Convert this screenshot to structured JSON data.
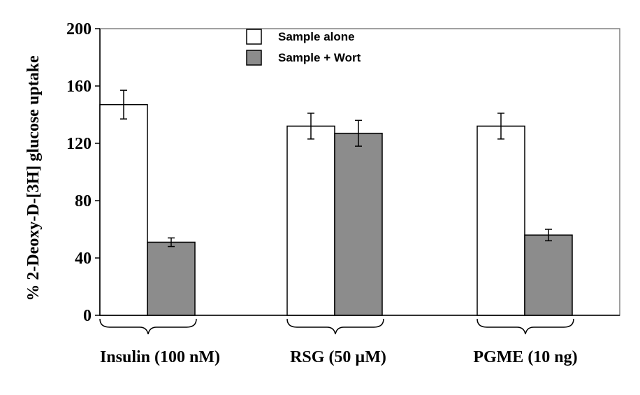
{
  "chart_data": {
    "type": "bar",
    "title": "",
    "ylabel": "% 2-Deoxy-D-[3H] glucose uptake",
    "xlabel": "",
    "ylim": [
      0,
      200
    ],
    "yticks": [
      "0",
      "40",
      "80",
      "120",
      "160",
      "200"
    ],
    "grid": false,
    "legend_position": "top-center",
    "categories": [
      "Insulin (100 nM)",
      "RSG (50 µM)",
      "PGME (10 ng)"
    ],
    "series": [
      {
        "name": "Sample alone",
        "color": "#ffffff",
        "values": [
          147,
          132,
          132
        ],
        "errors": [
          10,
          9,
          9
        ]
      },
      {
        "name": "Sample + Wort",
        "color": "#8c8c8c",
        "values": [
          51,
          127,
          56
        ],
        "errors": [
          3,
          9,
          4
        ]
      }
    ]
  }
}
